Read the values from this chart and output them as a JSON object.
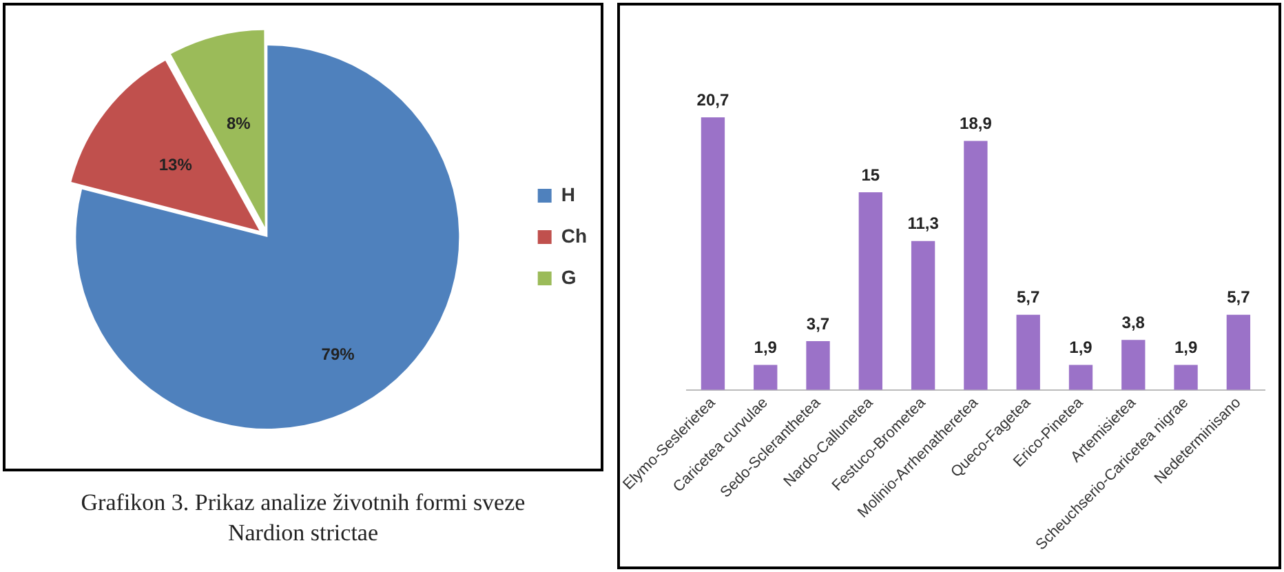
{
  "chart_data": [
    {
      "type": "pie",
      "categories": [
        "H",
        "Ch",
        "G"
      ],
      "values": [
        79,
        13,
        8
      ],
      "colors": [
        "#4f81bd",
        "#c0504d",
        "#9bbb59"
      ],
      "value_labels": [
        "79%",
        "13%",
        "8%"
      ],
      "legend": "right",
      "annotations": [
        "Grafikon 3. Prikaz analize životnih formi sveze Nardion strictae"
      ]
    },
    {
      "type": "bar",
      "categories": [
        "Elymo-Seslerietea",
        "Caricetea curvulae",
        "Sedo-Scleranthetea",
        "Nardo-Callunetea",
        "Festuco-Brometea",
        "Molinio-Arrhenatheretea",
        "Queco-Fagetea",
        "Erico-Pinetea",
        "Artemisietea",
        "Scheuchserio-Caricetea nigrae",
        "Nedeterminisano"
      ],
      "values": [
        20.7,
        1.9,
        3.7,
        15,
        11.3,
        18.9,
        5.7,
        1.9,
        3.8,
        1.9,
        5.7
      ],
      "color": "#9b72c8",
      "value_labels": [
        "20,7",
        "1,9",
        "3,7",
        "15",
        "11,3",
        "18,9",
        "5,7",
        "1,9",
        "3,8",
        "1,9",
        "5,7"
      ],
      "tick_labels": "x",
      "grid": false
    }
  ]
}
